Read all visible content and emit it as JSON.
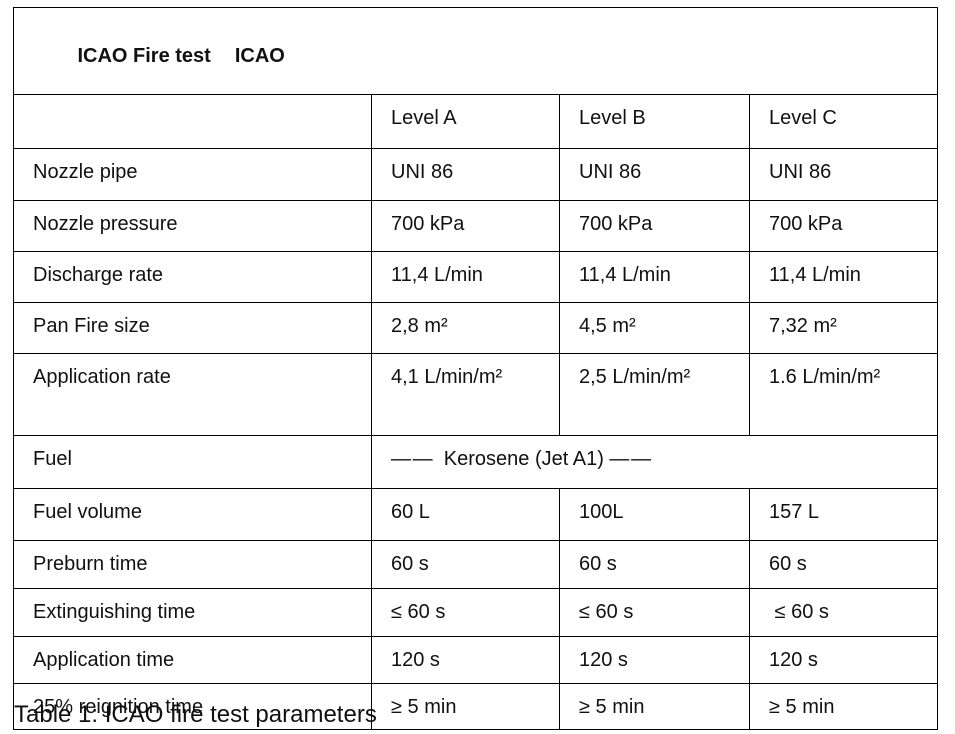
{
  "table": {
    "title_left": "ICAO Fire test",
    "title_right": "ICAO",
    "columns": [
      "",
      "Level A",
      "Level B",
      "Level C"
    ],
    "rows": [
      {
        "label": "Nozzle pipe",
        "values": [
          "UNI 86",
          "UNI 86",
          "UNI 86"
        ]
      },
      {
        "label": "Nozzle pressure",
        "values": [
          "700 kPa",
          "700 kPa",
          "700 kPa"
        ]
      },
      {
        "label": "Discharge rate",
        "values": [
          "11,4 L/min",
          "11,4 L/min",
          "11,4 L/min"
        ]
      },
      {
        "label": "Pan Fire size",
        "values": [
          "2,8 m²",
          "4,5 m²",
          "7,32 m²"
        ]
      },
      {
        "label": "Application rate",
        "values": [
          "4,1 L/min/m²",
          "2,5 L/min/m²",
          "1.6 L/min/m²"
        ]
      },
      {
        "label": "Fuel",
        "merged_value": "— —  Kerosene (Jet A1) — —"
      },
      {
        "label": "Fuel volume",
        "values": [
          "60 L",
          "100L",
          "157 L"
        ]
      },
      {
        "label": "Preburn time",
        "values": [
          "60 s",
          "60 s",
          "60 s"
        ]
      },
      {
        "label": "Extinguishing time",
        "values": [
          "≤ 60 s",
          "≤ 60 s",
          " ≤ 60 s"
        ]
      },
      {
        "label": "Application time",
        "values": [
          "120 s",
          "120 s",
          "120 s"
        ]
      },
      {
        "label": "25% reignition time",
        "values": [
          "≥ 5 min",
          "≥ 5 min",
          "≥ 5 min"
        ]
      }
    ]
  },
  "caption": "Table 1: ICAO fire test parameters"
}
